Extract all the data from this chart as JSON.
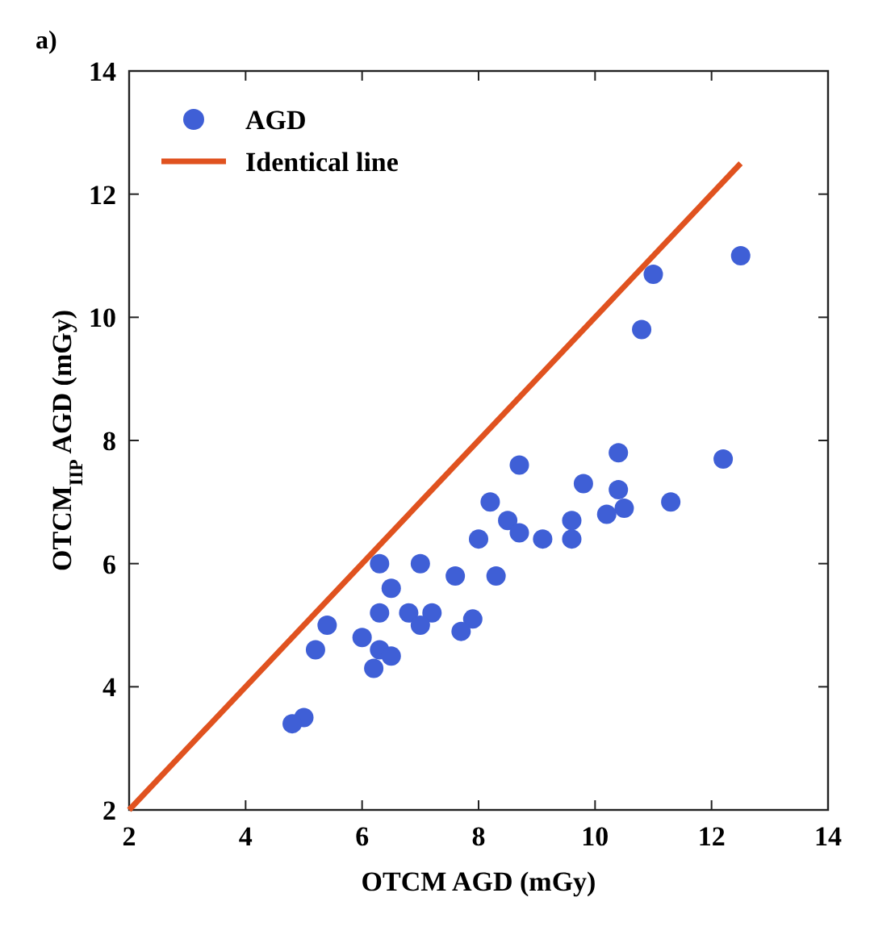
{
  "chart_data": {
    "type": "scatter",
    "xlabel": "OTCM AGD (mGy)",
    "ylabel": "OTCM$_{IIP}$ AGD (mGy)",
    "annotations": [
      "a)"
    ],
    "xlim": [
      2,
      14
    ],
    "ylim": [
      2,
      14
    ],
    "xticks": [
      2,
      4,
      6,
      8,
      10,
      12,
      14
    ],
    "yticks": [
      2,
      4,
      6,
      8,
      10,
      12,
      14
    ],
    "grid": false,
    "legend": "top left",
    "series": [
      {
        "name": "AGD",
        "marker": "circle",
        "color": "#3f5fd6",
        "x": [
          12.5,
          11.0,
          10.8,
          10.4,
          12.2,
          8.7,
          9.8,
          10.4,
          10.5,
          10.2,
          11.3,
          8.2,
          8.5,
          8.7,
          8.0,
          9.1,
          9.6,
          9.6,
          6.3,
          7.0,
          7.6,
          8.3,
          6.5,
          6.3,
          7.2,
          6.8,
          7.0,
          7.9,
          7.7,
          5.4,
          5.2,
          6.0,
          6.3,
          6.5,
          6.2,
          5.0,
          4.8
        ],
        "values": [
          11.0,
          10.7,
          9.8,
          7.8,
          7.7,
          7.6,
          7.3,
          7.2,
          6.9,
          6.8,
          7.0,
          7.0,
          6.7,
          6.5,
          6.4,
          6.4,
          6.7,
          6.4,
          6.0,
          6.0,
          5.8,
          5.8,
          5.6,
          5.2,
          5.2,
          5.2,
          5.0,
          5.1,
          4.9,
          5.0,
          4.6,
          4.8,
          4.6,
          4.5,
          4.3,
          3.5,
          3.4
        ]
      },
      {
        "name": "Identical line",
        "type": "line",
        "marker": "none",
        "line_style": "solid",
        "color": "#e0521f",
        "x": [
          2,
          12.5
        ],
        "values": [
          2,
          12.5
        ]
      }
    ]
  }
}
